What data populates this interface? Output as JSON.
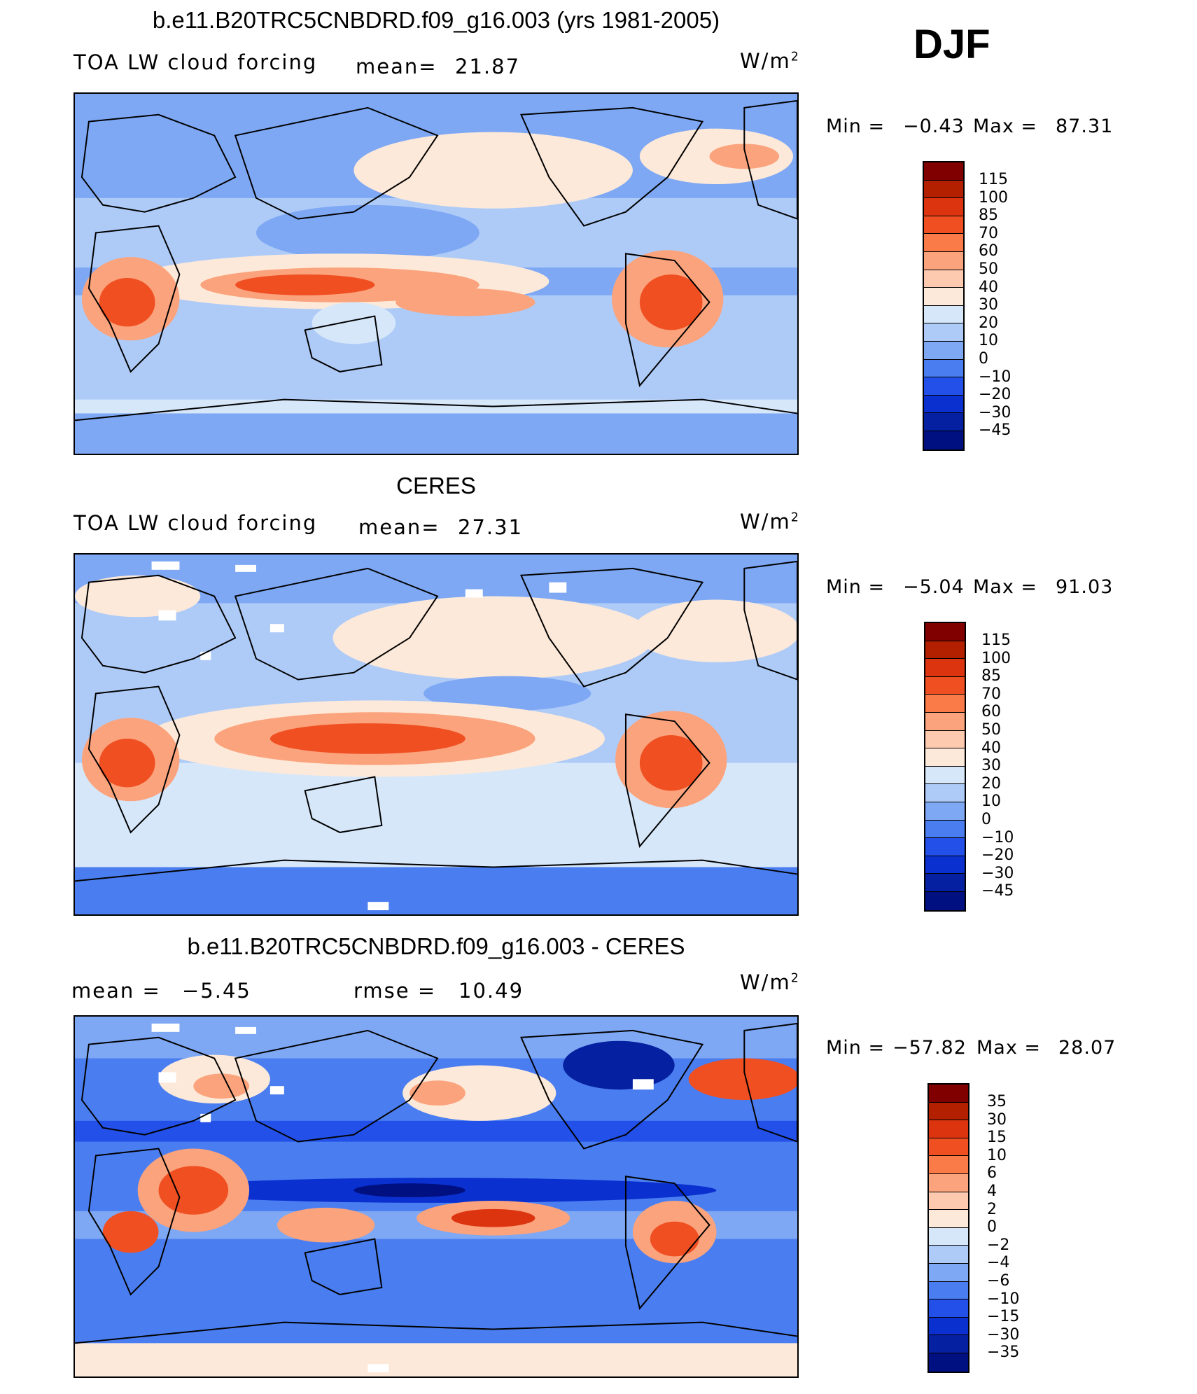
{
  "season": "DJF",
  "panels": [
    {
      "title": "b.e11.B20TRC5CNBDRD.f09_g16.003 (yrs 1981-2005)",
      "variable": "TOA LW cloud forcing",
      "stat1_label": "mean=",
      "stat1_value": "21.87",
      "stat2_label": "",
      "stat2_value": "",
      "units": "W/m",
      "units_sup": "2",
      "min_label": "Min =",
      "min_value": "−0.43",
      "max_label": "Max =",
      "max_value": "87.31",
      "colorbar_labels": [
        "115",
        "100",
        "85",
        "70",
        "60",
        "50",
        "40",
        "30",
        "20",
        "10",
        "0",
        "−10",
        "−20",
        "−30",
        "−45"
      ]
    },
    {
      "title": "CERES",
      "variable": "TOA LW cloud forcing",
      "stat1_label": "mean=",
      "stat1_value": "27.31",
      "stat2_label": "",
      "stat2_value": "",
      "units": "W/m",
      "units_sup": "2",
      "min_label": "Min =",
      "min_value": "−5.04",
      "max_label": "Max =",
      "max_value": "91.03",
      "colorbar_labels": [
        "115",
        "100",
        "85",
        "70",
        "60",
        "50",
        "40",
        "30",
        "20",
        "10",
        "0",
        "−10",
        "−20",
        "−30",
        "−45"
      ]
    },
    {
      "title": "b.e11.B20TRC5CNBDRD.f09_g16.003 - CERES",
      "variable": "",
      "stat1_label": "mean =",
      "stat1_value": "−5.45",
      "stat2_label": "rmse =",
      "stat2_value": "10.49",
      "units": "W/m",
      "units_sup": "2",
      "min_label": "Min =",
      "min_value": "−57.82",
      "max_label": "Max =",
      "max_value": "28.07",
      "colorbar_labels": [
        "35",
        "30",
        "15",
        "10",
        "6",
        "4",
        "2",
        "0",
        "−2",
        "−4",
        "−6",
        "−10",
        "−15",
        "−30",
        "−35"
      ]
    }
  ],
  "colorbar_colors": [
    "#800000",
    "#b22000",
    "#dd3410",
    "#f04f22",
    "#fa7a48",
    "#fba37c",
    "#fdcab0",
    "#fde9d9",
    "#d6e7fa",
    "#aecbf8",
    "#7ea8f4",
    "#4a7ef0",
    "#2250e8",
    "#0a30d0",
    "#0520a0",
    "#001080"
  ]
}
